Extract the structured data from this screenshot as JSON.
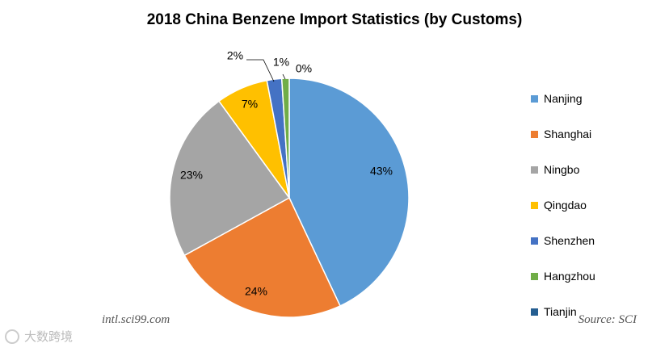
{
  "chart_data": {
    "type": "pie",
    "title": "2018 China Benzene Import Statistics (by Customs)",
    "categories": [
      "Nanjing",
      "Shanghai",
      "Ningbo",
      "Qingdao",
      "Shenzhen",
      "Hangzhou",
      "Tianjin"
    ],
    "values": [
      43,
      24,
      23,
      7,
      2,
      1,
      0
    ],
    "value_labels": [
      "43%",
      "24%",
      "23%",
      "7%",
      "2%",
      "1%",
      "0%"
    ],
    "colors": [
      "#5B9BD5",
      "#ED7D31",
      "#A5A5A5",
      "#FFC000",
      "#4472C4",
      "#70AD47",
      "#255E91"
    ],
    "legend_position": "right"
  },
  "watermark_left": "intl.sci99.com",
  "source": "Source: SCI",
  "corner_logo_text": "大数跨境"
}
